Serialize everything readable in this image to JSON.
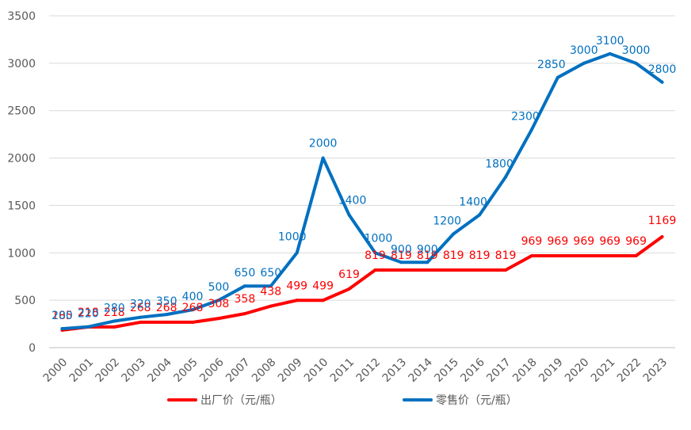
{
  "chart_data": {
    "type": "line",
    "title": "",
    "xlabel": "",
    "ylabel": "",
    "ylim": [
      0,
      3500
    ],
    "yticks": [
      0,
      500,
      1000,
      1500,
      2000,
      2500,
      3000,
      3500
    ],
    "grid": true,
    "legend_position": "bottom",
    "categories": [
      "2000",
      "2001",
      "2002",
      "2003",
      "2004",
      "2005",
      "2006",
      "2007",
      "2008",
      "2009",
      "2010",
      "2011",
      "2012",
      "2013",
      "2014",
      "2015",
      "2016",
      "2017",
      "2018",
      "2019",
      "2020",
      "2021",
      "2022",
      "2023"
    ],
    "series": [
      {
        "name": "出厂价（元/瓶）",
        "color": "#ff0000",
        "values": [
          185,
          218,
          218,
          268,
          268,
          268,
          308,
          358,
          438,
          499,
          499,
          619,
          819,
          819,
          819,
          819,
          819,
          819,
          969,
          969,
          969,
          969,
          969,
          1169
        ]
      },
      {
        "name": "零售价（元/瓶）",
        "color": "#0070c0",
        "values": [
          200,
          220,
          280,
          320,
          350,
          400,
          500,
          650,
          650,
          1000,
          2000,
          1400,
          1000,
          900,
          900,
          1200,
          1400,
          1800,
          2300,
          2850,
          3000,
          3100,
          3000,
          2800
        ]
      }
    ]
  }
}
